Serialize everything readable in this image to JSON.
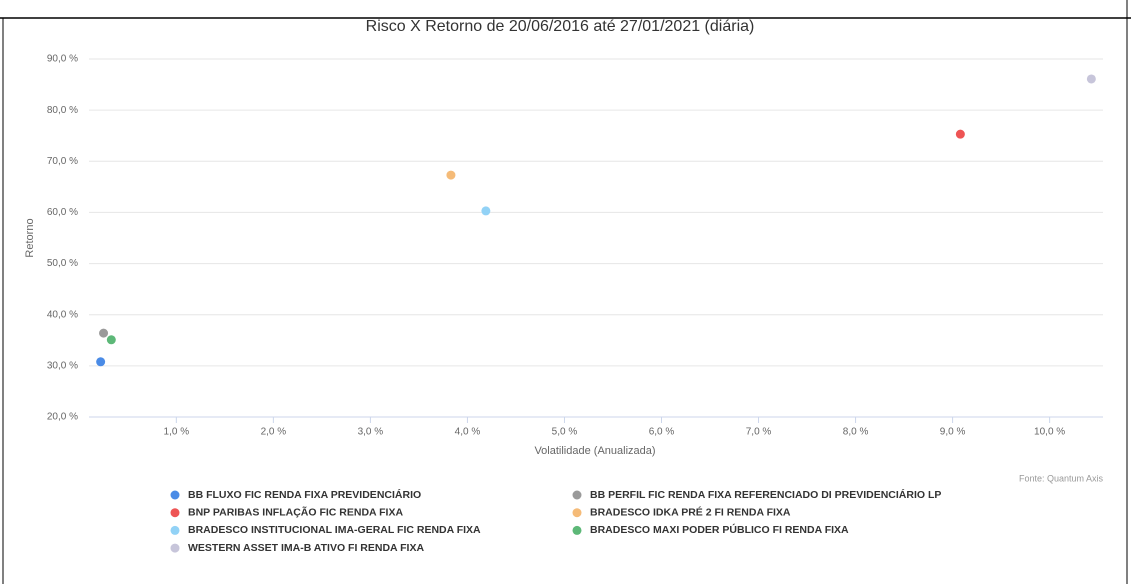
{
  "chart_data": {
    "type": "scatter",
    "title": "Risco X Retorno de 20/06/2016 até 27/01/2021 (diária)",
    "x_label": "Volatilidade (Anualizada)",
    "y_label": "Retorno",
    "source": "Fonte: Quantum Axis",
    "xlim": [
      0.1,
      10.55
    ],
    "ylim": [
      20,
      90
    ],
    "xticks": [
      {
        "value": 1,
        "label": "1,0 %"
      },
      {
        "value": 2,
        "label": "2,0 %"
      },
      {
        "value": 3,
        "label": "3,0 %"
      },
      {
        "value": 4,
        "label": "4,0 %"
      },
      {
        "value": 5,
        "label": "5,0 %"
      },
      {
        "value": 6,
        "label": "6,0 %"
      },
      {
        "value": 7,
        "label": "7,0 %"
      },
      {
        "value": 8,
        "label": "8,0 %"
      },
      {
        "value": 9,
        "label": "9,0 %"
      },
      {
        "value": 10,
        "label": "10,0 %"
      }
    ],
    "yticks": [
      {
        "value": 20,
        "label": "20,0 %"
      },
      {
        "value": 30,
        "label": "30,0 %"
      },
      {
        "value": 40,
        "label": "40,0 %"
      },
      {
        "value": 50,
        "label": "50,0 %"
      },
      {
        "value": 60,
        "label": "60,0 %"
      },
      {
        "value": 70,
        "label": "70,0 %"
      },
      {
        "value": 80,
        "label": "80,0 %"
      },
      {
        "value": 90,
        "label": "90,0 %"
      }
    ],
    "grid": true,
    "series": [
      {
        "name": "BB FLUXO FIC RENDA FIXA PREVIDENCIÁRIO",
        "color": "#4a8be6",
        "x": [
          0.22
        ],
        "values": [
          30.8
        ]
      },
      {
        "name": "BB PERFIL FIC RENDA FIXA REFERENCIADO DI PREVIDENCIÁRIO LP",
        "color": "#9a9a9a",
        "x": [
          0.25
        ],
        "values": [
          36.4
        ]
      },
      {
        "name": "BNP PARIBAS INFLAÇÃO FIC RENDA FIXA",
        "color": "#ee5454",
        "x": [
          9.08
        ],
        "values": [
          75.3
        ]
      },
      {
        "name": "BRADESCO IDKA PRÉ 2 FI RENDA FIXA",
        "color": "#f5bb78",
        "x": [
          3.83
        ],
        "values": [
          67.3
        ]
      },
      {
        "name": "BRADESCO INSTITUCIONAL IMA-GERAL FIC RENDA FIXA",
        "color": "#92d2f6",
        "x": [
          4.19
        ],
        "values": [
          60.3
        ]
      },
      {
        "name": "BRADESCO MAXI PODER PÚBLICO FI RENDA FIXA",
        "color": "#5db878",
        "x": [
          0.33
        ],
        "values": [
          35.1
        ]
      },
      {
        "name": "WESTERN ASSET IMA-B ATIVO FI RENDA FIXA",
        "color": "#c7c5da",
        "x": [
          10.43
        ],
        "values": [
          86.1
        ]
      }
    ]
  }
}
